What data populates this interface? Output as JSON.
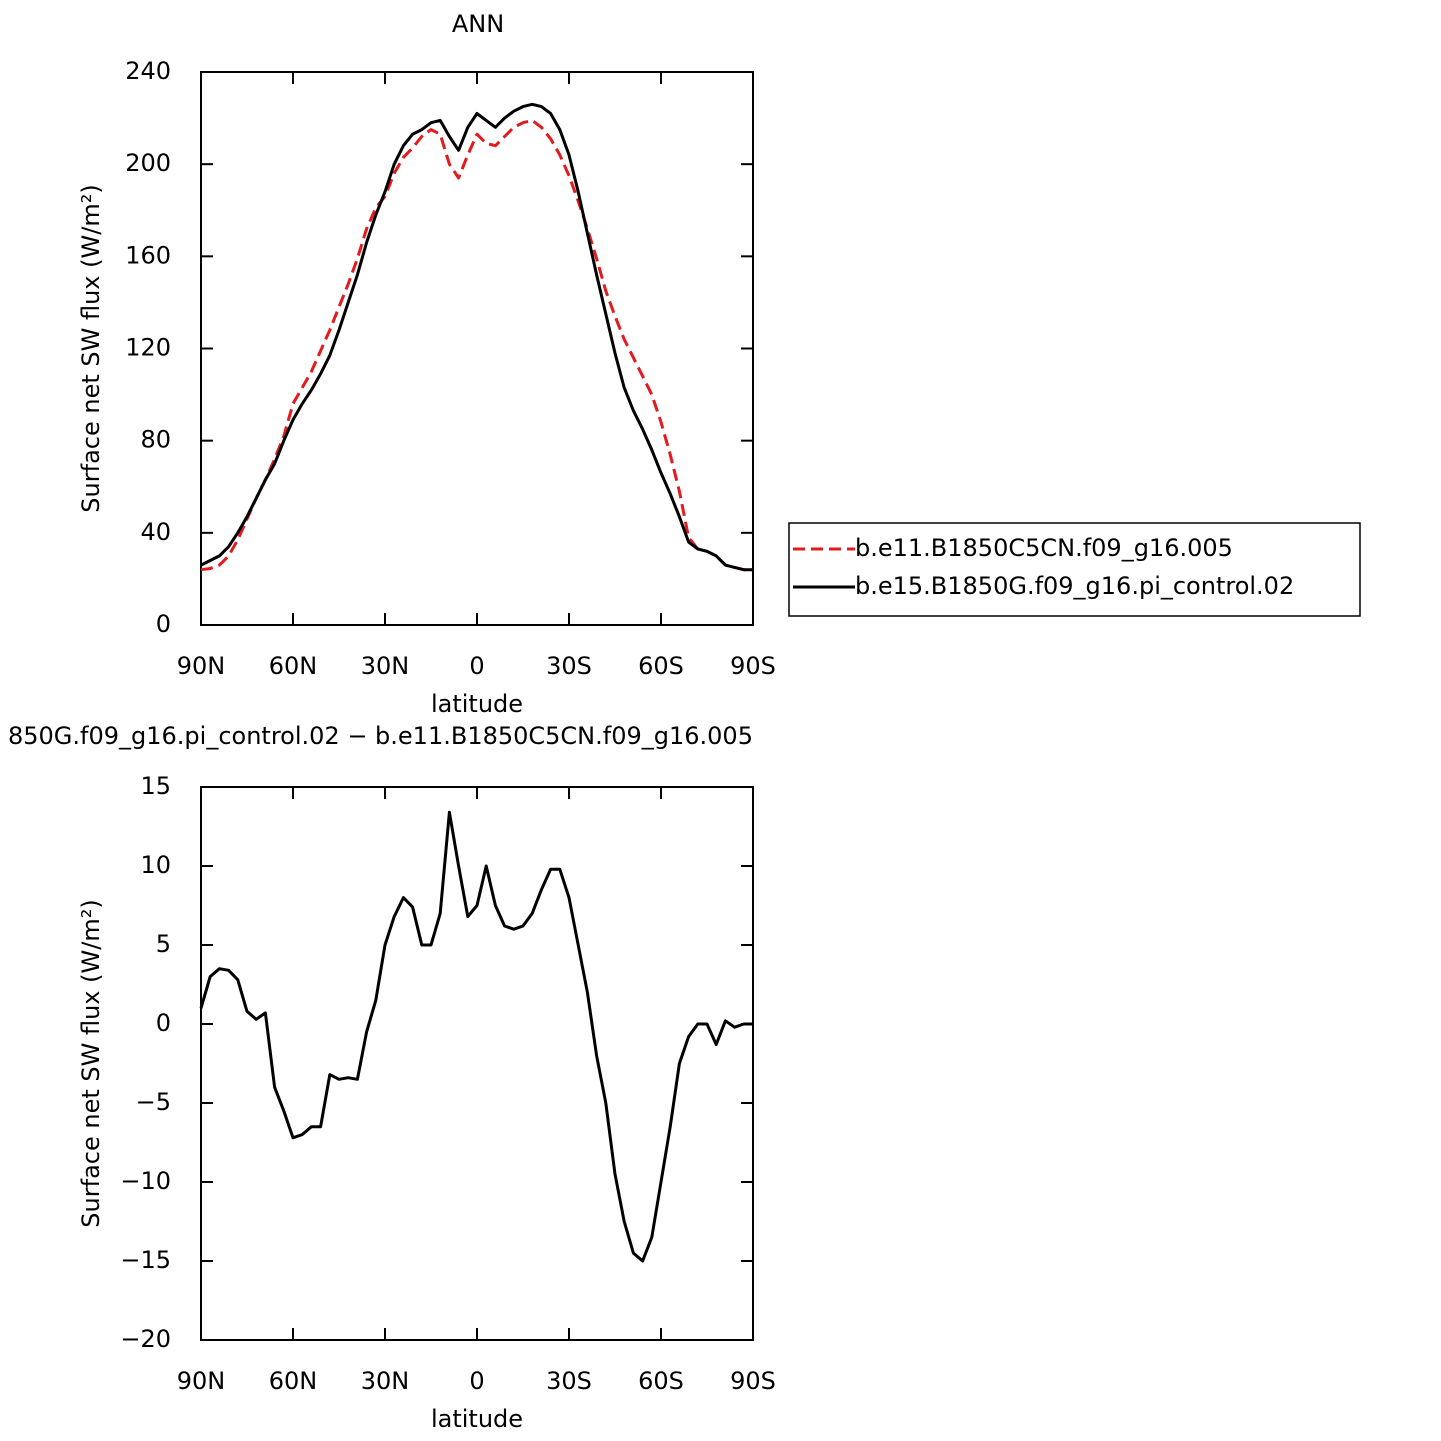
{
  "chart_data": [
    {
      "type": "line",
      "title": "ANN",
      "x_label": "latitude",
      "y_label": "Surface net SW flux (W/m²)",
      "x": [
        90,
        87,
        84,
        81,
        78,
        75,
        72,
        69,
        66,
        63,
        60,
        57,
        54,
        51,
        48,
        45,
        42,
        39,
        36,
        33,
        30,
        27,
        24,
        21,
        18,
        15,
        12,
        9,
        6,
        3,
        0,
        -3,
        -6,
        -9,
        -12,
        -15,
        -18,
        -21,
        -24,
        -27,
        -30,
        -33,
        -36,
        -39,
        -42,
        -45,
        -48,
        -51,
        -54,
        -57,
        -60,
        -63,
        -66,
        -69,
        -72,
        -75,
        -78,
        -81,
        -84,
        -87,
        -90
      ],
      "xlim": [
        90,
        -90
      ],
      "xticks": [
        {
          "value": 90,
          "label": "90N"
        },
        {
          "value": 60,
          "label": "60N"
        },
        {
          "value": 30,
          "label": "30N"
        },
        0,
        {
          "value": -30,
          "label": "30S"
        },
        {
          "value": -60,
          "label": "60S"
        },
        {
          "value": -90,
          "label": "90S"
        }
      ],
      "ylim": [
        0,
        240
      ],
      "yticks": [
        0,
        40,
        80,
        120,
        160,
        200,
        240
      ],
      "legend": "right",
      "series": [
        {
          "name": "b.e11.B1850C5CN.f09_g16.005",
          "color": "#e41a1c",
          "linestyle": "dashed",
          "values": [
            24,
            24.5,
            26,
            30,
            37,
            46,
            55,
            63,
            72,
            82,
            96,
            103,
            110,
            119,
            128,
            138,
            148,
            159,
            172,
            181,
            186,
            196,
            203,
            207,
            212,
            215,
            213,
            200,
            194,
            204,
            213,
            209,
            208,
            212,
            216,
            218,
            219,
            216,
            211,
            204,
            195,
            184,
            172,
            159,
            145,
            134,
            124,
            116,
            108,
            100,
            88,
            74,
            58,
            38,
            33,
            32,
            30,
            26,
            25,
            24,
            24
          ]
        },
        {
          "name": "b.e15.B1850G.f09_g16.pi_control.02",
          "color": "#000000",
          "linestyle": "solid",
          "values": [
            26,
            28,
            30,
            34,
            40,
            47,
            55,
            63,
            70,
            80,
            89,
            96,
            102,
            109,
            117,
            128,
            140,
            152,
            166,
            178,
            188,
            200,
            208,
            213,
            215,
            218,
            219,
            212,
            206,
            216,
            222,
            219,
            216,
            220,
            223,
            225,
            226,
            225,
            222,
            215,
            204,
            188,
            170,
            152,
            135,
            118,
            103,
            93,
            85,
            76,
            66,
            57,
            47,
            36,
            33,
            32,
            30,
            26,
            25,
            24,
            24
          ]
        }
      ]
    },
    {
      "type": "line",
      "title": "850G.f09_g16.pi_control.02 − b.e11.B1850C5CN.f09_g16.005",
      "x_label": "latitude",
      "y_label": "Surface net SW flux (W/m²)",
      "x": [
        90,
        87,
        84,
        81,
        78,
        75,
        72,
        69,
        66,
        63,
        60,
        57,
        54,
        51,
        48,
        45,
        42,
        39,
        36,
        33,
        30,
        27,
        24,
        21,
        18,
        15,
        12,
        9,
        6,
        3,
        0,
        -3,
        -6,
        -9,
        -12,
        -15,
        -18,
        -21,
        -24,
        -27,
        -30,
        -33,
        -36,
        -39,
        -42,
        -45,
        -48,
        -51,
        -54,
        -57,
        -60,
        -63,
        -66,
        -69,
        -72,
        -75,
        -78,
        -81,
        -84,
        -87,
        -90
      ],
      "xlim": [
        90,
        -90
      ],
      "xticks": [
        {
          "value": 90,
          "label": "90N"
        },
        {
          "value": 60,
          "label": "60N"
        },
        {
          "value": 30,
          "label": "30N"
        },
        0,
        {
          "value": -30,
          "label": "30S"
        },
        {
          "value": -60,
          "label": "60S"
        },
        {
          "value": -90,
          "label": "90S"
        }
      ],
      "ylim": [
        -20,
        15
      ],
      "yticks": [
        {
          "value": -20,
          "label": "−20"
        },
        {
          "value": -15,
          "label": "−15"
        },
        {
          "value": -10,
          "label": "−10"
        },
        {
          "value": -5,
          "label": "−5"
        },
        0,
        5,
        10,
        15
      ],
      "series": [
        {
          "color": "#000000",
          "linestyle": "solid",
          "values": [
            1,
            3,
            3.5,
            3.4,
            2.8,
            0.8,
            0.3,
            0.7,
            -4,
            -5.5,
            -7.2,
            -7,
            -6.5,
            -6.5,
            -3.2,
            -3.5,
            -3.4,
            -3.5,
            -0.5,
            1.5,
            5,
            6.8,
            8,
            7.4,
            5,
            5,
            7,
            13.4,
            10,
            6.8,
            7.5,
            10,
            7.5,
            6.2,
            6,
            6.2,
            7,
            8.5,
            9.8,
            9.8,
            8,
            5,
            2,
            -2,
            -5,
            -9.5,
            -12.5,
            -14.5,
            -15,
            -13.5,
            -10,
            -6.5,
            -2.5,
            -0.8,
            0,
            0,
            -1.3,
            0.2,
            -0.2,
            0,
            0
          ]
        }
      ]
    }
  ]
}
